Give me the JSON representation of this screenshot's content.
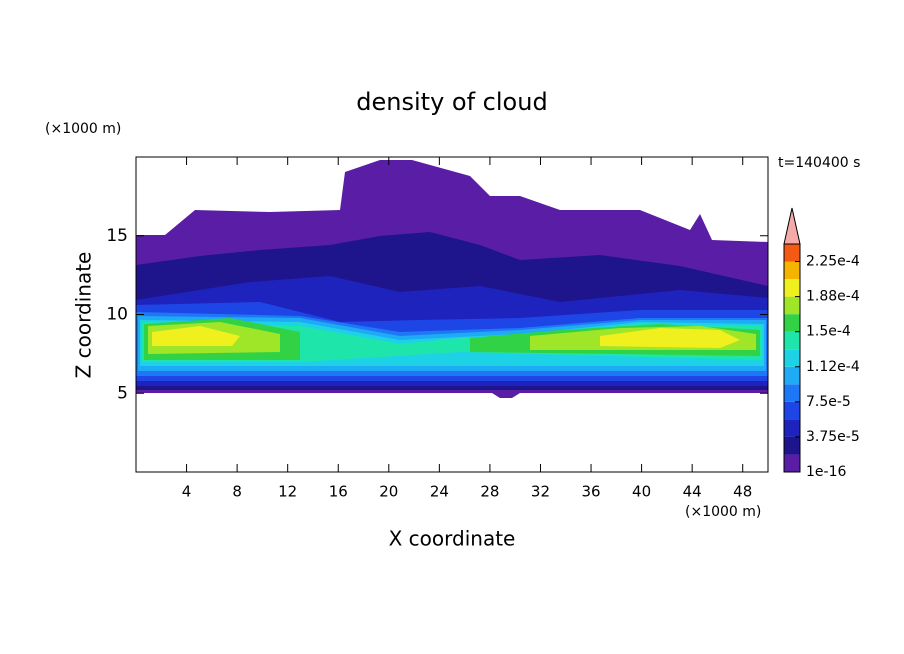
{
  "chart_data": {
    "type": "contour",
    "title": "density of cloud",
    "x_label": "X coordinate",
    "y_label": "Z coordinate",
    "x_unit": "(×1000 m)",
    "y_unit": "(×1000 m)",
    "time_label": "t=140400 s",
    "xlim": [
      0,
      50
    ],
    "ylim": [
      0,
      20
    ],
    "xticks": [
      4,
      8,
      12,
      16,
      20,
      24,
      28,
      32,
      36,
      40,
      44,
      48
    ],
    "yticks": [
      5,
      10,
      15
    ],
    "colorbar": {
      "levels": [
        1e-16,
        1.875e-05,
        3.75e-05,
        5.625e-05,
        7.5e-05,
        9.375e-05,
        0.0001125,
        0.00013125,
        0.00015,
        0.00016875,
        0.0001875,
        0.00020625,
        0.000225
      ],
      "colors": [
        "#5a1ea6",
        "#1e148c",
        "#1e23be",
        "#1e46e6",
        "#1e78f5",
        "#1eaaf5",
        "#1ed2e6",
        "#1ee6aa",
        "#32d246",
        "#a0e628",
        "#f0f01e",
        "#f5b400",
        "#f55a14"
      ],
      "extend_color": "#f5aaaa",
      "ticks": [
        1e-16,
        {
          "value": 3.75e-05,
          "label": "3.75e-5"
        },
        {
          "value": 7.5e-05,
          "label": "7.5e-5"
        },
        {
          "value": 0.0001125,
          "label": "1.12e-4"
        },
        {
          "value": 0.00015,
          "label": "1.5e-4"
        },
        {
          "value": 0.0001875,
          "label": "1.88e-4"
        },
        {
          "value": 0.000225,
          "label": "2.25e-4"
        }
      ]
    }
  }
}
